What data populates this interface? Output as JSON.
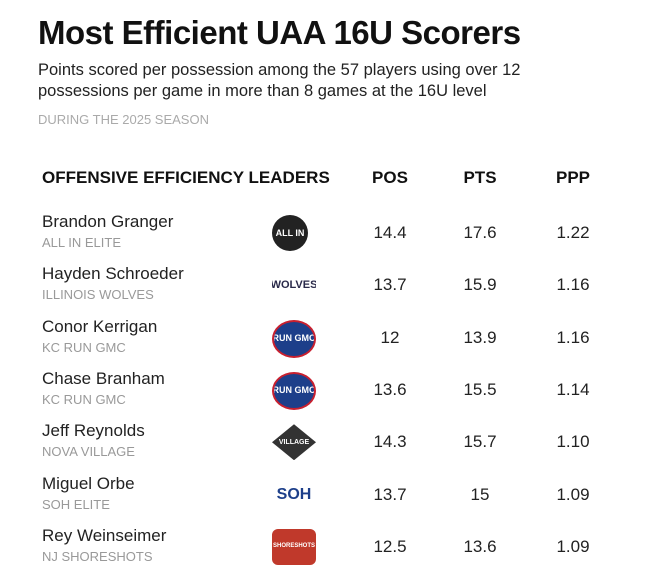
{
  "header": {
    "title": "Most Efficient UAA 16U Scorers",
    "subtitle": "Points scored per possession among the 57 players using over 12 possessions per game in more than 8 games at the 16U level",
    "note": "DURING THE 2025 SEASON"
  },
  "table": {
    "columns": [
      "OFFENSIVE EFFICIENCY LEADERS",
      "POS",
      "PTS",
      "PPP"
    ],
    "rows": [
      {
        "name": "Brandon Granger",
        "team": "ALL IN ELITE",
        "logo": "ALL IN",
        "cells": [
          "14.4",
          "17.6",
          "1.22"
        ]
      },
      {
        "name": "Hayden Schroeder",
        "team": "ILLINOIS WOLVES",
        "logo": "WOLVES",
        "cells": [
          "13.7",
          "15.9",
          "1.16"
        ]
      },
      {
        "name": "Conor Kerrigan",
        "team": "KC RUN GMC",
        "logo": "RUN GMC",
        "cells": [
          "12",
          "13.9",
          "1.16"
        ]
      },
      {
        "name": "Chase Branham",
        "team": "KC RUN GMC",
        "logo": "RUN GMC",
        "cells": [
          "13.6",
          "15.5",
          "1.14"
        ]
      },
      {
        "name": "Jeff Reynolds",
        "team": "NOVA VILLAGE",
        "logo": "VILLAGE",
        "cells": [
          "14.3",
          "15.7",
          "1.10"
        ]
      },
      {
        "name": "Miguel Orbe",
        "team": "SOH ELITE",
        "logo": "SOH",
        "cells": [
          "13.7",
          "15",
          "1.09"
        ]
      },
      {
        "name": "Rey Weinseimer",
        "team": "NJ SHORESHOTS",
        "logo": "SHORESHOTS",
        "cells": [
          "12.5",
          "13.6",
          "1.09"
        ]
      }
    ]
  }
}
